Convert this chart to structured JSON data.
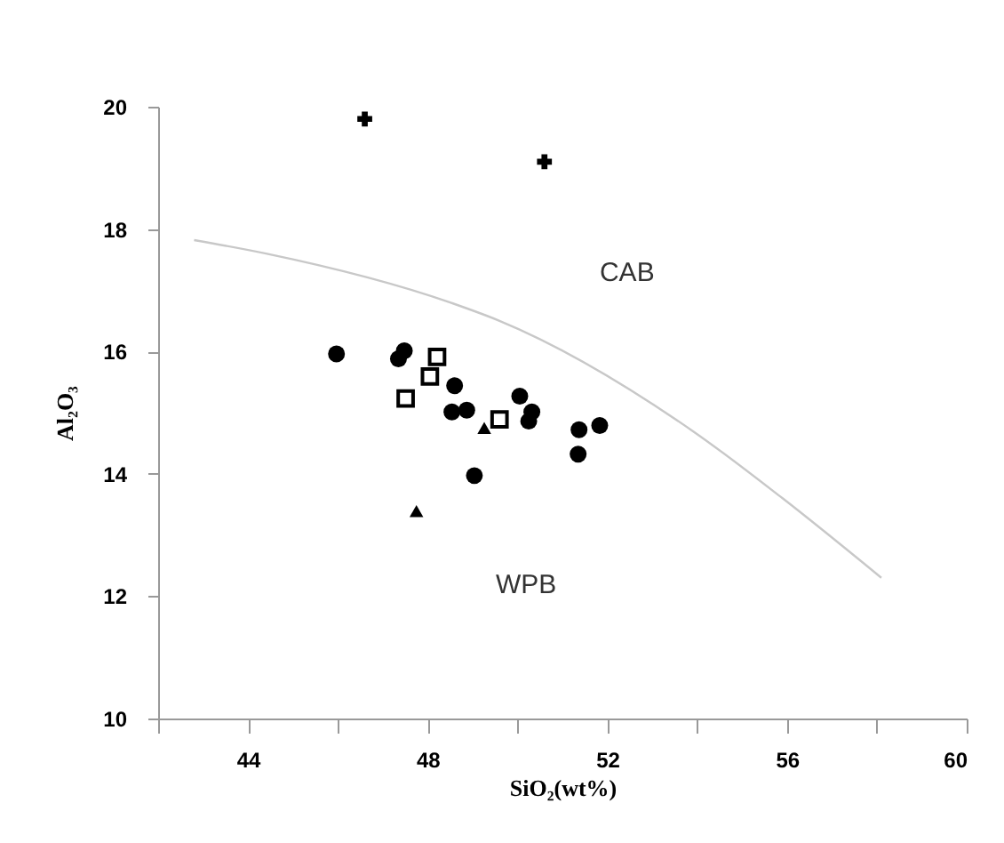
{
  "chart_data": {
    "type": "scatter",
    "xlabel": "SiO₂(wt%)",
    "ylabel": "Al₂O₃",
    "xlim": [
      42,
      60
    ],
    "ylim": [
      10,
      20
    ],
    "xticks": [
      {
        "value": 42,
        "label": null
      },
      44,
      {
        "value": 46,
        "label": null
      },
      48,
      {
        "value": 50,
        "label": null
      },
      52,
      {
        "value": 54,
        "label": null
      },
      56,
      {
        "value": 58,
        "label": null
      },
      60
    ],
    "yticks": [
      10,
      12,
      14,
      16,
      18,
      20
    ],
    "grid": false,
    "annotations": [
      "CAB",
      "WPB"
    ],
    "series": [
      {
        "type": "line",
        "color": "#c8c8c8",
        "marker": "none",
        "line_style": "solid",
        "x": [
          42.8,
          44.4,
          48.5,
          49.6,
          53.9,
          55.9,
          58.1
        ],
        "values": [
          17.82,
          17.6,
          16.8,
          16.5,
          14.7,
          13.6,
          12.3
        ]
      },
      {
        "color": "#000000",
        "marker": "circle",
        "x": [
          45.97,
          47.35,
          47.48,
          48.6,
          48.54,
          48.87,
          50.05,
          50.32,
          50.25,
          51.37,
          51.83,
          51.35,
          49.04
        ],
        "values": [
          15.96,
          15.88,
          16.01,
          15.44,
          15.01,
          15.04,
          15.27,
          15.01,
          14.86,
          14.72,
          14.79,
          14.32,
          13.97
        ]
      },
      {
        "color": "#000000",
        "marker": "square",
        "x": [
          48.21,
          48.05,
          47.51,
          49.6
        ],
        "values": [
          15.91,
          15.59,
          15.23,
          14.89
        ]
      },
      {
        "color": "#000000",
        "marker": "triangle",
        "x": [
          49.26,
          47.75
        ],
        "values": [
          14.75,
          13.39
        ]
      },
      {
        "color": "#000000",
        "marker": "cross",
        "x": [
          46.6,
          50.6
        ],
        "values": [
          19.8,
          19.1
        ]
      }
    ]
  }
}
